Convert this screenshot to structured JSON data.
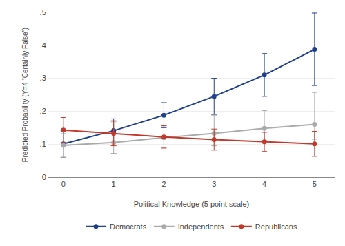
{
  "chart_data": {
    "type": "line",
    "x": [
      0,
      1,
      2,
      3,
      4,
      5
    ],
    "series": [
      {
        "name": "Democrats",
        "color": "#1f3f8f",
        "marker": "circle",
        "line_style": "solid",
        "values": [
          0.101,
          0.141,
          0.188,
          0.245,
          0.31,
          0.388
        ],
        "ci_low": [
          0.06,
          0.105,
          0.15,
          0.19,
          0.245,
          0.278
        ],
        "ci_high": [
          0.142,
          0.177,
          0.226,
          0.3,
          0.375,
          0.498
        ]
      },
      {
        "name": "Independents",
        "color": "#aaaaaa",
        "marker": "circle",
        "line_style": "solid",
        "values": [
          0.096,
          0.105,
          0.12,
          0.133,
          0.148,
          0.16
        ],
        "ci_low": [
          0.06,
          0.072,
          0.09,
          0.095,
          0.112,
          0.115
        ],
        "ci_high": [
          0.132,
          0.168,
          0.155,
          0.188,
          0.202,
          0.257
        ]
      },
      {
        "name": "Republicans",
        "color": "#c0392b",
        "marker": "circle",
        "line_style": "solid",
        "values": [
          0.143,
          0.133,
          0.122,
          0.114,
          0.107,
          0.101
        ],
        "ci_low": [
          0.105,
          0.095,
          0.088,
          0.082,
          0.078,
          0.063
        ],
        "ci_high": [
          0.181,
          0.171,
          0.156,
          0.146,
          0.136,
          0.139
        ]
      }
    ],
    "x_label": "Political Knowledge (5 point scale)",
    "y_label": "Predicted Probability (Y=4 “Certainly False”)",
    "xlim": [
      -0.3,
      5.4
    ],
    "xticks": [
      0,
      1,
      2,
      3,
      4,
      5
    ],
    "ylim": [
      0.0,
      0.5
    ],
    "yticks": [
      0,
      {
        "value": 0.1,
        "label": ".1"
      },
      {
        "value": 0.2,
        "label": ".2"
      },
      {
        "value": 0.3,
        "label": ".3"
      },
      {
        "value": 0.4,
        "label": ".4"
      },
      {
        "value": 0.5,
        "label": ".5"
      }
    ],
    "grid": "y",
    "legend": "bottom"
  }
}
